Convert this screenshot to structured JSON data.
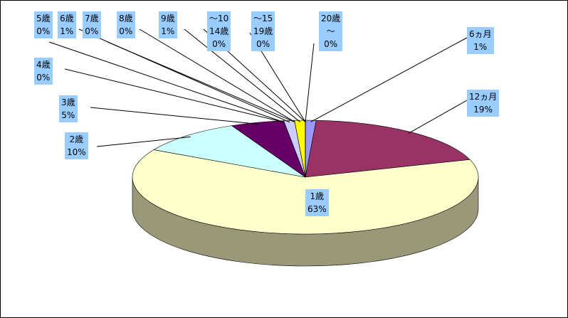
{
  "chart_data": {
    "type": "pie",
    "categories": [
      "6ヵ月",
      "12ヵ月",
      "1歳",
      "2歳",
      "3歳",
      "4歳",
      "5歳",
      "6歳",
      "7歳",
      "8歳",
      "9歳",
      "～10\n14歳",
      "～15\n19歳",
      "20歳\n～"
    ],
    "values": [
      1,
      19,
      63,
      10,
      5,
      0,
      0,
      1,
      0,
      0,
      1,
      0,
      0,
      0
    ],
    "value_labels": [
      "1%",
      "19%",
      "63%",
      "10%",
      "5%",
      "0%",
      "0%",
      "1%",
      "0%",
      "0%",
      "1%",
      "0%",
      "0%",
      "0%"
    ],
    "colors": [
      "#9999ff",
      "#993366",
      "#ffffcc",
      "#ccffff",
      "#660066",
      "#ff8080",
      "#0066cc",
      "#ccccff",
      "#000080",
      "#ff00ff",
      "#ffff00",
      "#00ffff",
      "#800080",
      "#800000"
    ]
  }
}
